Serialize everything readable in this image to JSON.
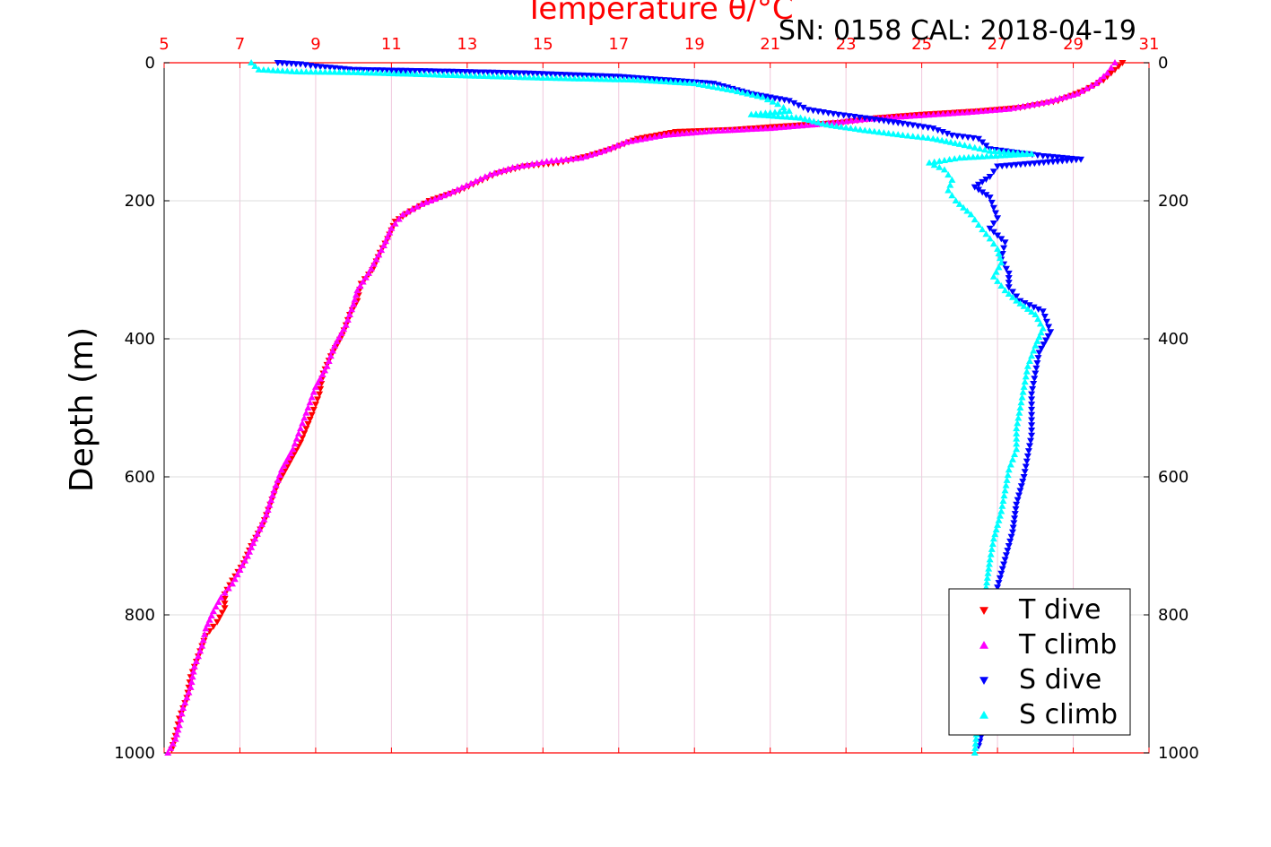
{
  "chart_data": {
    "type": "scatter",
    "title": "Temperature θ/°C",
    "subtitle": "SN: 0158  CAL: 2018-04-19",
    "ylabel": "Depth (m)",
    "xlabel": "",
    "xlim": [
      5,
      31
    ],
    "ylim": [
      0,
      1000
    ],
    "y_inverted": true,
    "grid": true,
    "legend_position": "bottom-right",
    "x_ticks": [
      "5",
      "7",
      "9",
      "11",
      "13",
      "15",
      "17",
      "19",
      "21",
      "23",
      "25",
      "27",
      "29",
      "31"
    ],
    "y_ticks": [
      "0",
      "200",
      "400",
      "600",
      "800",
      "1000"
    ],
    "colors": {
      "title": "#ff0000",
      "top_axis": "#ff0000",
      "t_dive": "#ff0000",
      "t_climb": "#ff00ff",
      "s_dive": "#0000ff",
      "s_climb": "#00ffff",
      "grid_x": "#f0c8dc",
      "grid_y": "#dcdcdc"
    },
    "series": [
      {
        "name": "T dive",
        "marker": "triangle-down",
        "points": [
          [
            30.3,
            0
          ],
          [
            30.1,
            10
          ],
          [
            29.8,
            25
          ],
          [
            29.3,
            40
          ],
          [
            28.6,
            55
          ],
          [
            27.6,
            65
          ],
          [
            26.5,
            70
          ],
          [
            25.0,
            75
          ],
          [
            23.8,
            80
          ],
          [
            22.8,
            87
          ],
          [
            21.3,
            92
          ],
          [
            20.0,
            97
          ],
          [
            18.5,
            100
          ],
          [
            17.5,
            110
          ],
          [
            16.8,
            125
          ],
          [
            16.2,
            135
          ],
          [
            15.4,
            145
          ],
          [
            14.5,
            150
          ],
          [
            13.8,
            160
          ],
          [
            13.4,
            170
          ],
          [
            12.8,
            185
          ],
          [
            12.0,
            200
          ],
          [
            11.5,
            215
          ],
          [
            11.1,
            230
          ],
          [
            10.9,
            255
          ],
          [
            10.7,
            275
          ],
          [
            10.5,
            300
          ],
          [
            10.2,
            320
          ],
          [
            10.1,
            345
          ],
          [
            9.9,
            365
          ],
          [
            9.7,
            395
          ],
          [
            9.4,
            425
          ],
          [
            9.2,
            450
          ],
          [
            9.1,
            480
          ],
          [
            8.9,
            510
          ],
          [
            8.6,
            550
          ],
          [
            8.3,
            580
          ],
          [
            8.0,
            610
          ],
          [
            7.8,
            640
          ],
          [
            7.6,
            670
          ],
          [
            7.3,
            700
          ],
          [
            7.1,
            725
          ],
          [
            6.8,
            750
          ],
          [
            6.6,
            770
          ],
          [
            6.6,
            790
          ],
          [
            6.4,
            810
          ],
          [
            6.1,
            830
          ],
          [
            5.9,
            860
          ],
          [
            5.7,
            890
          ],
          [
            5.6,
            920
          ],
          [
            5.4,
            950
          ],
          [
            5.3,
            975
          ],
          [
            5.2,
            995
          ]
        ]
      },
      {
        "name": "T climb",
        "marker": "triangle-up",
        "points": [
          [
            30.1,
            0
          ],
          [
            29.9,
            15
          ],
          [
            29.6,
            30
          ],
          [
            29.1,
            45
          ],
          [
            28.3,
            57
          ],
          [
            27.3,
            67
          ],
          [
            26.2,
            72
          ],
          [
            24.8,
            77
          ],
          [
            23.5,
            82
          ],
          [
            22.3,
            89
          ],
          [
            21.0,
            95
          ],
          [
            19.5,
            99
          ],
          [
            18.2,
            105
          ],
          [
            17.2,
            115
          ],
          [
            16.6,
            128
          ],
          [
            16.0,
            138
          ],
          [
            15.1,
            143
          ],
          [
            14.2,
            152
          ],
          [
            13.6,
            162
          ],
          [
            13.1,
            175
          ],
          [
            12.5,
            190
          ],
          [
            11.8,
            205
          ],
          [
            11.3,
            220
          ],
          [
            11.0,
            240
          ],
          [
            10.8,
            265
          ],
          [
            10.6,
            285
          ],
          [
            10.4,
            305
          ],
          [
            10.1,
            330
          ],
          [
            10.0,
            350
          ],
          [
            9.8,
            380
          ],
          [
            9.5,
            410
          ],
          [
            9.3,
            440
          ],
          [
            9.0,
            470
          ],
          [
            8.8,
            500
          ],
          [
            8.6,
            530
          ],
          [
            8.4,
            560
          ],
          [
            8.1,
            590
          ],
          [
            7.9,
            620
          ],
          [
            7.7,
            655
          ],
          [
            7.4,
            690
          ],
          [
            7.2,
            715
          ],
          [
            7.0,
            735
          ],
          [
            6.8,
            755
          ],
          [
            6.5,
            775
          ],
          [
            6.3,
            795
          ],
          [
            6.1,
            820
          ],
          [
            6.0,
            845
          ],
          [
            5.8,
            875
          ],
          [
            5.7,
            905
          ],
          [
            5.5,
            935
          ],
          [
            5.4,
            960
          ],
          [
            5.3,
            980
          ],
          [
            5.1,
            1000
          ]
        ]
      },
      {
        "name": "S dive",
        "marker": "triangle-down",
        "points": [
          [
            8.0,
            0
          ],
          [
            8.6,
            2
          ],
          [
            9.0,
            5
          ],
          [
            10.0,
            10
          ],
          [
            12.0,
            12
          ],
          [
            14.5,
            15
          ],
          [
            17.0,
            20
          ],
          [
            19.5,
            30
          ],
          [
            20.5,
            45
          ],
          [
            21.5,
            55
          ],
          [
            22.0,
            68
          ],
          [
            22.8,
            75
          ],
          [
            23.5,
            80
          ],
          [
            24.5,
            88
          ],
          [
            25.3,
            95
          ],
          [
            25.8,
            105
          ],
          [
            26.5,
            110
          ],
          [
            26.8,
            125
          ],
          [
            27.5,
            130
          ],
          [
            28.2,
            135
          ],
          [
            29.2,
            140
          ],
          [
            27.0,
            150
          ],
          [
            26.8,
            165
          ],
          [
            26.4,
            180
          ],
          [
            26.8,
            195
          ],
          [
            26.9,
            210
          ],
          [
            27.0,
            225
          ],
          [
            26.8,
            240
          ],
          [
            27.2,
            260
          ],
          [
            27.1,
            285
          ],
          [
            27.3,
            305
          ],
          [
            27.3,
            325
          ],
          [
            27.6,
            345
          ],
          [
            28.2,
            360
          ],
          [
            28.4,
            390
          ],
          [
            28.1,
            420
          ],
          [
            28.0,
            450
          ],
          [
            27.9,
            480
          ],
          [
            27.9,
            510
          ],
          [
            27.9,
            540
          ],
          [
            27.8,
            570
          ],
          [
            27.7,
            600
          ],
          [
            27.5,
            640
          ],
          [
            27.4,
            680
          ],
          [
            27.2,
            720
          ],
          [
            27.0,
            760
          ],
          [
            26.9,
            800
          ],
          [
            26.8,
            860
          ],
          [
            26.8,
            920
          ],
          [
            26.6,
            970
          ],
          [
            26.5,
            990
          ]
        ]
      },
      {
        "name": "S climb",
        "marker": "triangle-up",
        "points": [
          [
            7.3,
            0
          ],
          [
            7.5,
            10
          ],
          [
            8.5,
            13
          ],
          [
            10.0,
            14
          ],
          [
            12.5,
            18
          ],
          [
            15.0,
            22
          ],
          [
            17.5,
            25
          ],
          [
            19.0,
            30
          ],
          [
            20.0,
            40
          ],
          [
            20.8,
            50
          ],
          [
            21.2,
            60
          ],
          [
            21.5,
            70
          ],
          [
            20.5,
            75
          ],
          [
            21.8,
            80
          ],
          [
            22.5,
            90
          ],
          [
            23.5,
            98
          ],
          [
            24.5,
            105
          ],
          [
            25.3,
            110
          ],
          [
            26.0,
            118
          ],
          [
            26.8,
            128
          ],
          [
            27.9,
            132
          ],
          [
            26.0,
            138
          ],
          [
            25.2,
            145
          ],
          [
            25.6,
            155
          ],
          [
            25.8,
            170
          ],
          [
            25.7,
            185
          ],
          [
            25.9,
            200
          ],
          [
            26.3,
            220
          ],
          [
            26.5,
            235
          ],
          [
            26.8,
            255
          ],
          [
            27.0,
            270
          ],
          [
            27.1,
            290
          ],
          [
            26.9,
            310
          ],
          [
            27.2,
            330
          ],
          [
            27.5,
            345
          ],
          [
            28.0,
            365
          ],
          [
            28.2,
            385
          ],
          [
            28.0,
            410
          ],
          [
            27.8,
            440
          ],
          [
            27.7,
            470
          ],
          [
            27.6,
            500
          ],
          [
            27.5,
            530
          ],
          [
            27.5,
            560
          ],
          [
            27.3,
            590
          ],
          [
            27.2,
            620
          ],
          [
            27.1,
            650
          ],
          [
            26.9,
            690
          ],
          [
            26.8,
            720
          ],
          [
            26.7,
            760
          ],
          [
            26.6,
            820
          ],
          [
            26.6,
            880
          ],
          [
            26.5,
            940
          ],
          [
            26.4,
            1000
          ]
        ]
      }
    ]
  }
}
